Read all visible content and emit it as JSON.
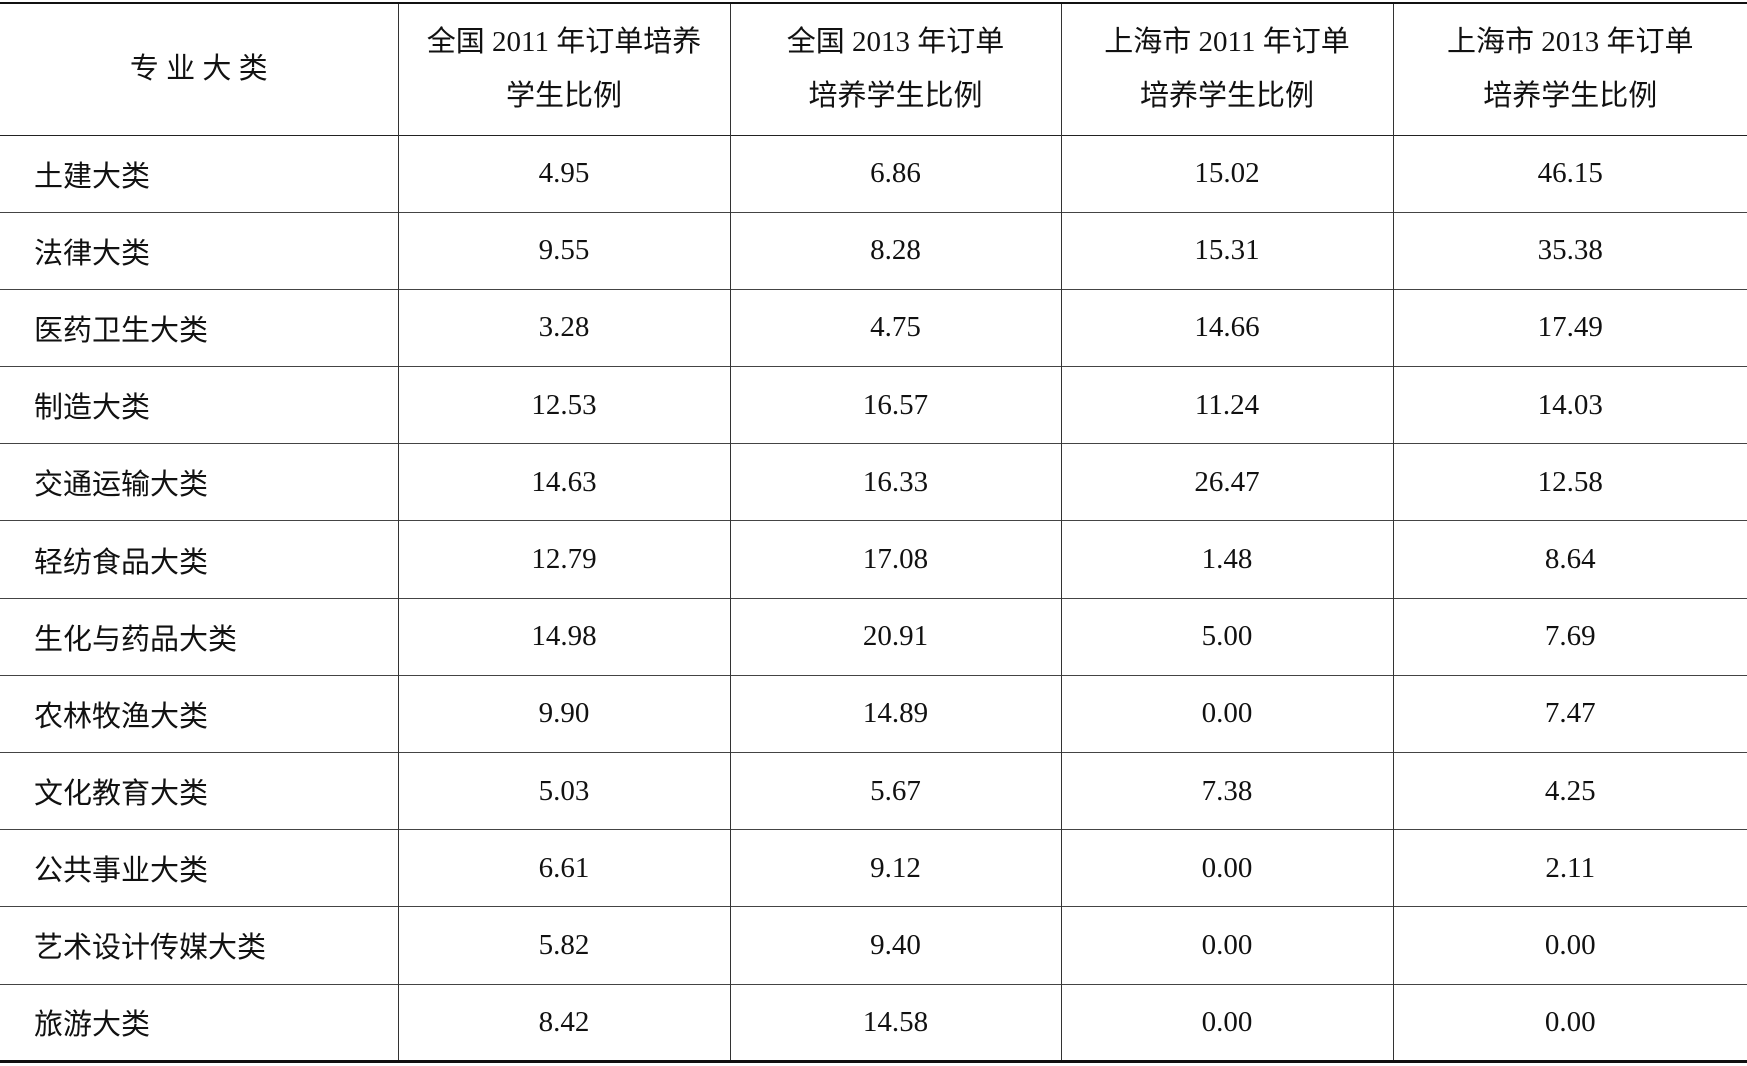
{
  "table": {
    "header": [
      [
        "专 业 大 类"
      ],
      [
        "全国 2011 年订单培养",
        "学生比例"
      ],
      [
        "全国 2013 年订单",
        "培养学生比例"
      ],
      [
        "上海市 2011 年订单",
        "培养学生比例"
      ],
      [
        "上海市 2013 年订单",
        "培养学生比例"
      ]
    ],
    "rows": [
      [
        "土建大类",
        "4.95",
        "6.86",
        "15.02",
        "46.15"
      ],
      [
        "法律大类",
        "9.55",
        "8.28",
        "15.31",
        "35.38"
      ],
      [
        "医药卫生大类",
        "3.28",
        "4.75",
        "14.66",
        "17.49"
      ],
      [
        "制造大类",
        "12.53",
        "16.57",
        "11.24",
        "14.03"
      ],
      [
        "交通运输大类",
        "14.63",
        "16.33",
        "26.47",
        "12.58"
      ],
      [
        "轻纺食品大类",
        "12.79",
        "17.08",
        "1.48",
        "8.64"
      ],
      [
        "生化与药品大类",
        "14.98",
        "20.91",
        "5.00",
        "7.69"
      ],
      [
        "农林牧渔大类",
        "9.90",
        "14.89",
        "0.00",
        "7.47"
      ],
      [
        "文化教育大类",
        "5.03",
        "5.67",
        "7.38",
        "4.25"
      ],
      [
        "公共事业大类",
        "6.61",
        "9.12",
        "0.00",
        "2.11"
      ],
      [
        "艺术设计传媒大类",
        "5.82",
        "9.40",
        "0.00",
        "0.00"
      ],
      [
        "旅游大类",
        "8.42",
        "14.58",
        "0.00",
        "0.00"
      ]
    ]
  }
}
